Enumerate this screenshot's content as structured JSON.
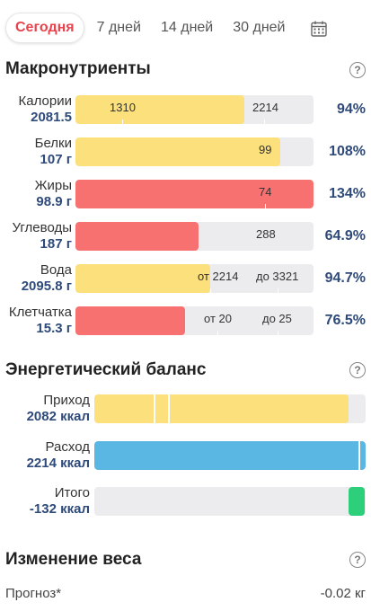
{
  "tabs": [
    {
      "label": "Сегодня",
      "active": true
    },
    {
      "label": "7 дней",
      "active": false
    },
    {
      "label": "14 дней",
      "active": false
    },
    {
      "label": "30 дней",
      "active": false
    }
  ],
  "macros": {
    "title": "Макронутриенты",
    "rows": [
      {
        "name": "Калории",
        "value": "2081.5",
        "pct": "94%",
        "color": "yellow",
        "fill_ratio": 0.94,
        "ticks": [
          {
            "text": "1310"
          },
          {
            "text": "2214"
          }
        ]
      },
      {
        "name": "Белки",
        "value": "107 г",
        "pct": "108%",
        "color": "yellow",
        "fill_ratio": 1.0,
        "ticks": [
          {
            "text": "99"
          }
        ]
      },
      {
        "name": "Жиры",
        "value": "98.9 г",
        "pct": "134%",
        "color": "red",
        "fill_ratio": 1.0,
        "ticks": [
          {
            "text": "74"
          }
        ]
      },
      {
        "name": "Углеводы",
        "value": "187 г",
        "pct": "64.9%",
        "color": "red",
        "fill_ratio": 0.649,
        "ticks": [
          {
            "text": "288"
          }
        ]
      },
      {
        "name": "Вода",
        "value": "2095.8 г",
        "pct": "94.7%",
        "color": "yellow",
        "fill_ratio": 0.947,
        "ticks": [
          {
            "text": "от 2214"
          },
          {
            "text": "до 3321"
          }
        ]
      },
      {
        "name": "Клетчатка",
        "value": "15.3 г",
        "pct": "76.5%",
        "color": "red",
        "fill_ratio": 0.765,
        "ticks": [
          {
            "text": "от 20"
          },
          {
            "text": "до 25"
          }
        ]
      }
    ]
  },
  "energy": {
    "title": "Энергетический баланс",
    "rows": [
      {
        "name": "Приход",
        "value": "2082 ккал",
        "color": "yellow",
        "fill_ratio": 0.94
      },
      {
        "name": "Расход",
        "value": "2214 ккал",
        "color": "blue",
        "fill_ratio": 1.0
      },
      {
        "name": "Итого",
        "value": "-132 ккал",
        "color": "green",
        "fill_ratio": 0.06
      }
    ]
  },
  "weight": {
    "title": "Изменение веса",
    "forecast_label": "Прогноз*",
    "forecast_value": "-0.02 кг"
  },
  "colors": {
    "accent": "#e8434d",
    "value_text": "#2e4a7a",
    "yellow": "#fbe07c",
    "red": "#f87171",
    "blue": "#5ab7e3",
    "green": "#2ecf7a",
    "track": "#ececef"
  },
  "icons": {
    "calendar": "calendar-icon",
    "help": "help-circle-icon"
  }
}
